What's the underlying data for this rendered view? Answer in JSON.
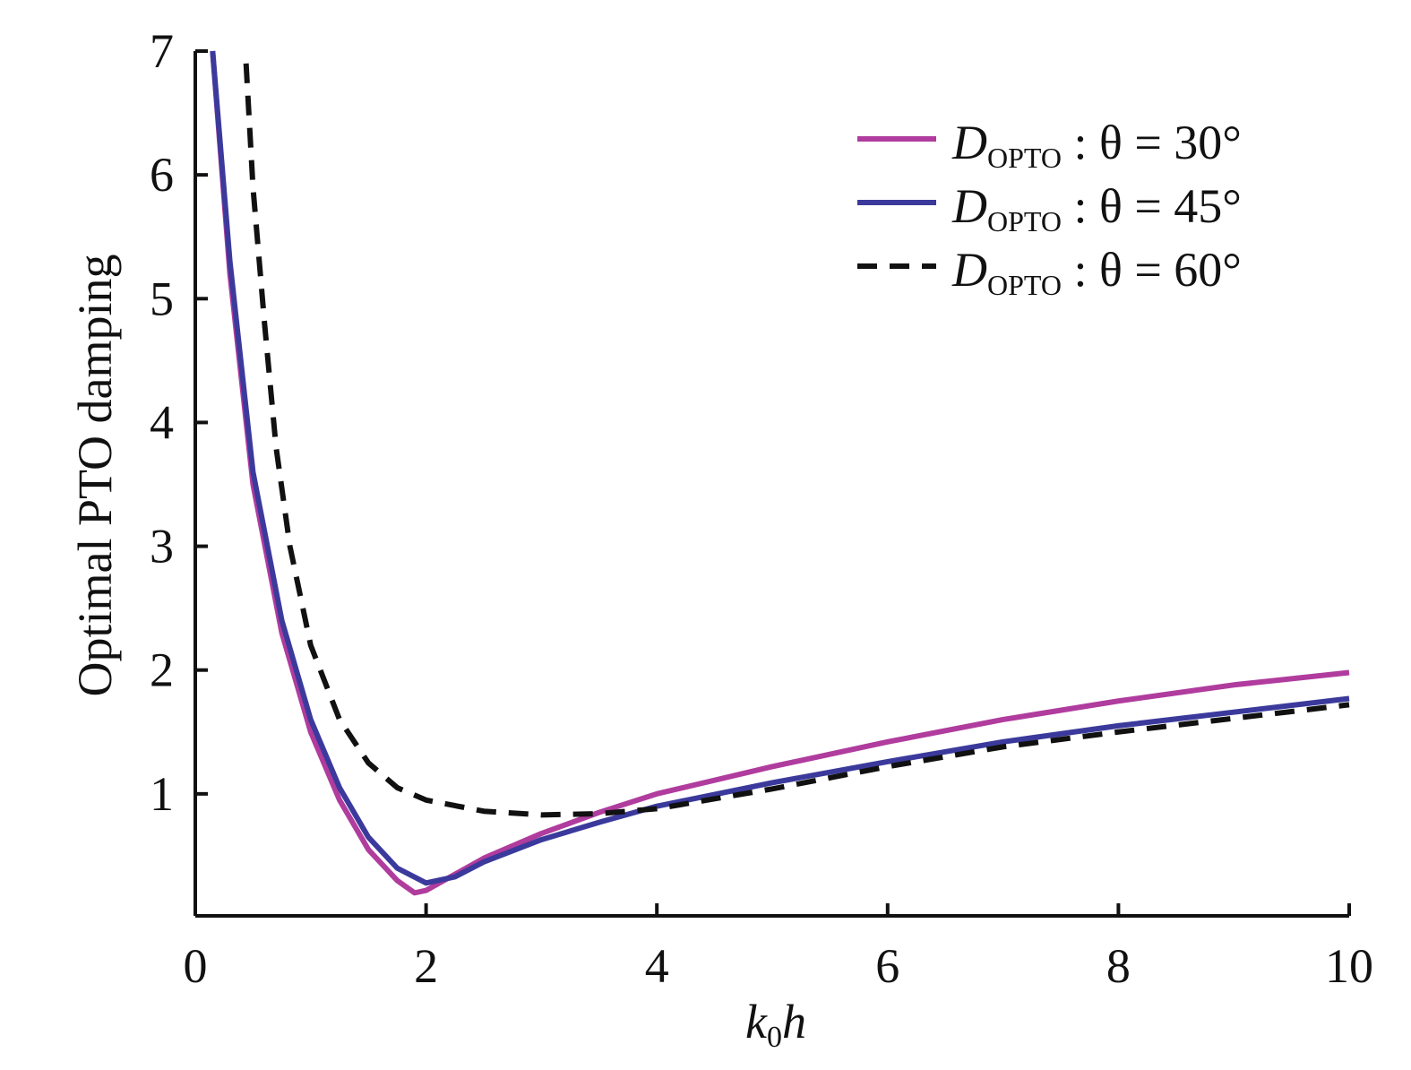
{
  "chart_data": {
    "type": "line",
    "x_label": "k0h",
    "y_label": "Optimal PTO damping",
    "xlim": [
      0,
      10
    ],
    "xticks": [
      0,
      2,
      4,
      6,
      8,
      10
    ],
    "ylim": [
      0,
      7
    ],
    "yticks": [
      1,
      2,
      3,
      4,
      5,
      6,
      7
    ],
    "legend": "upper right",
    "series": [
      {
        "name": "DOPTO : θ = 30°",
        "color": "#b03c9e",
        "dash": false,
        "x": [
          0.15,
          0.3,
          0.5,
          0.75,
          1.0,
          1.25,
          1.5,
          1.75,
          1.9,
          2.0,
          2.25,
          2.5,
          3,
          3.5,
          4,
          5,
          6,
          7,
          8,
          9,
          10
        ],
        "values": [
          7,
          5.2,
          3.5,
          2.3,
          1.5,
          0.95,
          0.55,
          0.3,
          0.2,
          0.22,
          0.35,
          0.48,
          0.68,
          0.85,
          1.0,
          1.22,
          1.42,
          1.6,
          1.75,
          1.88,
          1.98
        ]
      },
      {
        "name": "DOPTO : θ = 45°",
        "color": "#3b3a9c",
        "dash": false,
        "x": [
          0.15,
          0.3,
          0.5,
          0.75,
          1.0,
          1.25,
          1.5,
          1.75,
          2.0,
          2.25,
          2.5,
          3,
          3.5,
          4,
          5,
          6,
          7,
          8,
          9,
          10
        ],
        "values": [
          7,
          5.3,
          3.6,
          2.4,
          1.6,
          1.05,
          0.65,
          0.4,
          0.28,
          0.33,
          0.45,
          0.63,
          0.77,
          0.9,
          1.09,
          1.26,
          1.42,
          1.55,
          1.66,
          1.77
        ]
      },
      {
        "name": "DOPTO : θ = 60°",
        "color": "#111111",
        "dash": true,
        "x": [
          0.44,
          0.5,
          0.6,
          0.7,
          0.82,
          1.0,
          1.25,
          1.5,
          1.75,
          2,
          2.5,
          3,
          3.5,
          4,
          5,
          6,
          7,
          8,
          9,
          10
        ],
        "values": [
          6.9,
          5.9,
          4.8,
          3.8,
          3.0,
          2.2,
          1.6,
          1.25,
          1.05,
          0.95,
          0.86,
          0.83,
          0.84,
          0.88,
          1.04,
          1.22,
          1.38,
          1.5,
          1.61,
          1.72
        ]
      }
    ]
  }
}
